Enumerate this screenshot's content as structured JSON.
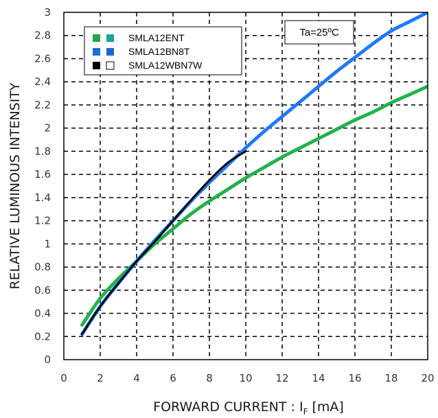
{
  "chart_data": {
    "type": "line",
    "title": "",
    "xlabel": {
      "main": "FORWARD CURRENT : I",
      "sub": "F",
      "unit": " [mA]"
    },
    "ylabel": "RELATIVE LUMINOUS INTENSITY",
    "xlim": [
      0,
      20
    ],
    "ylim": [
      0,
      3
    ],
    "xticks": [
      "0",
      "2",
      "4",
      "6",
      "8",
      "10",
      "12",
      "14",
      "16",
      "18",
      "20"
    ],
    "yticks": [
      "0",
      "0.2",
      "0.4",
      "0.6",
      "0.8",
      "1",
      "1.2",
      "1.4",
      "1.6",
      "1.8",
      "2",
      "2.2",
      "2.4",
      "2.6",
      "2.8",
      "3"
    ],
    "grid": true,
    "annotation": "Ta=25ºC",
    "legend_position": "top-left",
    "legend": [
      {
        "label": "SMLA12ENT",
        "colors": [
          "#22a84a",
          "#19a39a"
        ]
      },
      {
        "label": "SMLA12BN8T",
        "colors": [
          "#1c6fd1",
          "#1768c4"
        ]
      },
      {
        "label": "SMLA12WBN7W",
        "colors": [
          "#000000",
          "#ffffff"
        ]
      }
    ],
    "series": [
      {
        "color": "#22b14c",
        "x": [
          1,
          2,
          3,
          4,
          5,
          6,
          7,
          8,
          9,
          10,
          11,
          12,
          13,
          14,
          15,
          16,
          17,
          18,
          19,
          20
        ],
        "y": [
          0.3,
          0.53,
          0.7,
          0.85,
          1.0,
          1.13,
          1.26,
          1.37,
          1.47,
          1.57,
          1.66,
          1.75,
          1.83,
          1.91,
          1.99,
          2.07,
          2.14,
          2.22,
          2.29,
          2.36
        ]
      },
      {
        "color": "#1f78ff",
        "x": [
          1,
          2,
          3,
          4,
          5,
          6,
          7,
          8,
          9,
          10,
          11,
          12,
          13,
          14,
          15,
          16,
          17,
          18,
          19,
          20
        ],
        "y": [
          0.22,
          0.46,
          0.66,
          0.85,
          1.03,
          1.2,
          1.37,
          1.53,
          1.68,
          1.83,
          1.97,
          2.1,
          2.23,
          2.36,
          2.49,
          2.61,
          2.73,
          2.84,
          2.92,
          3.0
        ]
      },
      {
        "color": "#000000",
        "x": [
          1,
          2,
          3,
          4,
          5,
          6,
          7,
          8,
          9,
          10
        ],
        "y": [
          0.22,
          0.46,
          0.66,
          0.85,
          1.02,
          1.2,
          1.38,
          1.55,
          1.7,
          1.8
        ]
      }
    ]
  }
}
